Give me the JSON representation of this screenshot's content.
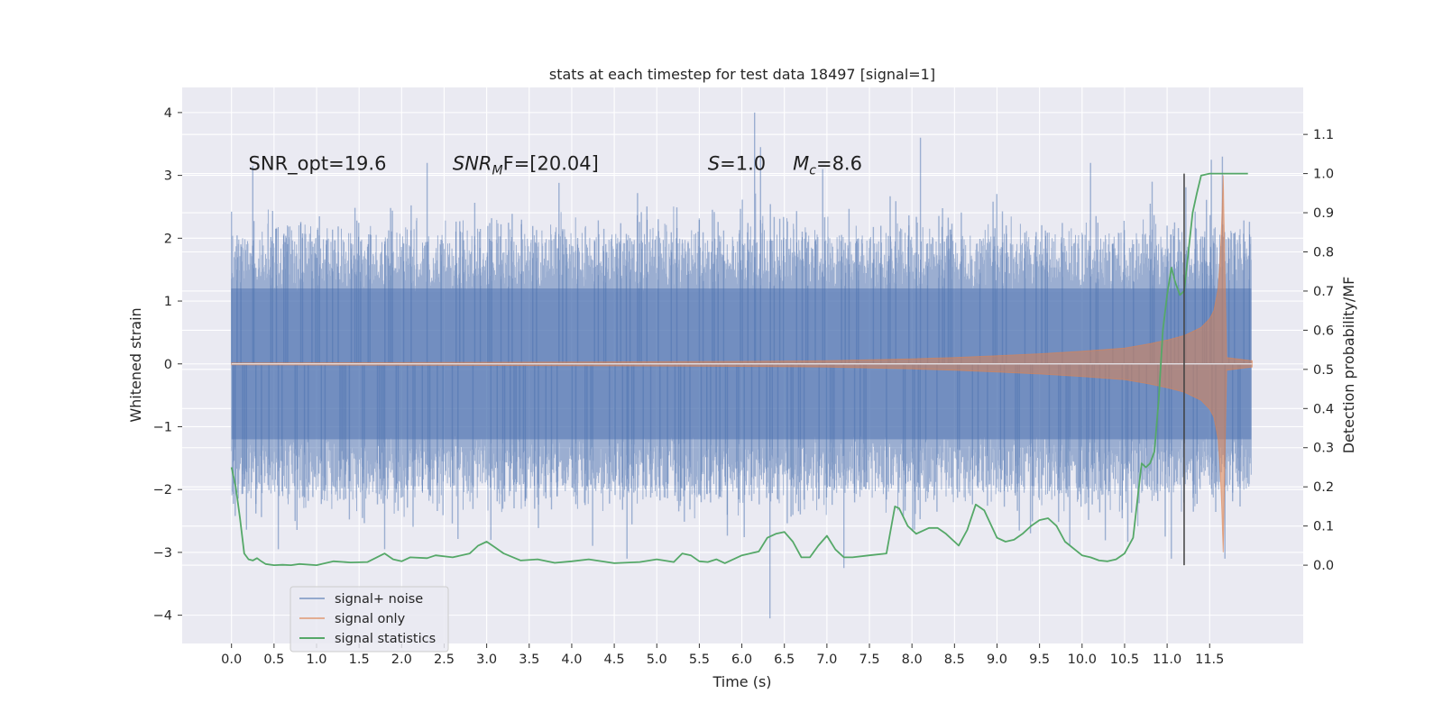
{
  "chart_data": {
    "type": "line",
    "title": "stats at each timestep for test data 18497 [signal=1]",
    "xlabel": "Time (s)",
    "ylabel": "Whitened strain",
    "ylabel_right": "Detection probability/MF",
    "xlim": [
      -0.58,
      12.6
    ],
    "ylim": [
      -4.45,
      4.4
    ],
    "ylim_right": [
      -0.2,
      1.22
    ],
    "xticks": [
      0.0,
      0.5,
      1.0,
      1.5,
      2.0,
      2.5,
      3.0,
      3.5,
      4.0,
      4.5,
      5.0,
      5.5,
      6.0,
      6.5,
      7.0,
      7.5,
      8.0,
      8.5,
      9.0,
      9.5,
      10.0,
      10.5,
      11.0,
      11.5
    ],
    "xtick_labels": [
      "0.0",
      "0.5",
      "1.0",
      "1.5",
      "2.0",
      "2.5",
      "3.0",
      "3.5",
      "4.0",
      "4.5",
      "5.0",
      "5.5",
      "6.0",
      "6.5",
      "7.0",
      "7.5",
      "8.0",
      "8.5",
      "9.0",
      "9.5",
      "10.0",
      "10.5",
      "11.0",
      "11.5"
    ],
    "yticks": [
      -4,
      -3,
      -2,
      -1,
      0,
      1,
      2,
      3,
      4
    ],
    "ytick_labels": [
      "−4",
      "−3",
      "−2",
      "−1",
      "0",
      "1",
      "2",
      "3",
      "4"
    ],
    "yticks_right": [
      0.0,
      0.1,
      0.2,
      0.3,
      0.4,
      0.5,
      0.6,
      0.7,
      0.8,
      0.9,
      1.0,
      1.1
    ],
    "ytick_labels_right": [
      "0.0",
      "0.1",
      "0.2",
      "0.3",
      "0.4",
      "0.5",
      "0.6",
      "0.7",
      "0.8",
      "0.9",
      "1.0",
      "1.1"
    ],
    "grid": true,
    "legend_position": "lower-left",
    "background": "#eaeaf2",
    "series": [
      {
        "name": "signal+ noise",
        "color": "#4c72b0",
        "kind": "noise_band",
        "x_range": [
          0.0,
          11.99
        ],
        "core_amplitude": [
          -1.2,
          1.2
        ],
        "typical_envelope": [
          -1.9,
          1.9
        ],
        "peaks": [
          {
            "x": 0.25,
            "y": 3.15
          },
          {
            "x": 2.3,
            "y": 3.2
          },
          {
            "x": 3.05,
            "y": -2.8
          },
          {
            "x": 4.65,
            "y": -3.1
          },
          {
            "x": 6.15,
            "y": 4.0
          },
          {
            "x": 6.22,
            "y": 3.45
          },
          {
            "x": 6.33,
            "y": -4.05
          },
          {
            "x": 6.95,
            "y": 3.1
          },
          {
            "x": 7.2,
            "y": -3.25
          },
          {
            "x": 8.1,
            "y": 3.6
          },
          {
            "x": 10.1,
            "y": 3.2
          },
          {
            "x": 11.05,
            "y": -3.1
          },
          {
            "x": 11.52,
            "y": 3.25
          },
          {
            "x": 11.65,
            "y": 3.3
          },
          {
            "x": 11.68,
            "y": -3.1
          },
          {
            "x": 0.55,
            "y": -2.95
          },
          {
            "x": 1.8,
            "y": -2.95
          }
        ]
      },
      {
        "name": "signal only",
        "color": "#dd8452",
        "kind": "chirp_envelope",
        "x": [
          0.0,
          2.0,
          4.0,
          6.0,
          7.0,
          8.0,
          8.5,
          9.0,
          9.5,
          10.0,
          10.5,
          10.8,
          11.0,
          11.2,
          11.4,
          11.5,
          11.55,
          11.6,
          11.62,
          11.64,
          11.66,
          11.68,
          11.7,
          12.0
        ],
        "amplitude": [
          0.015,
          0.02,
          0.03,
          0.04,
          0.05,
          0.08,
          0.1,
          0.13,
          0.16,
          0.2,
          0.25,
          0.32,
          0.38,
          0.45,
          0.58,
          0.72,
          0.85,
          1.2,
          1.6,
          2.2,
          3.0,
          1.5,
          0.1,
          0.05
        ]
      },
      {
        "name": "signal statistics",
        "color": "#55a868",
        "kind": "line",
        "axis": "right",
        "x": [
          0.0,
          0.05,
          0.1,
          0.15,
          0.2,
          0.25,
          0.3,
          0.35,
          0.4,
          0.5,
          0.6,
          0.7,
          0.8,
          1.0,
          1.2,
          1.4,
          1.6,
          1.8,
          1.9,
          2.0,
          2.1,
          2.3,
          2.4,
          2.6,
          2.8,
          2.9,
          3.0,
          3.1,
          3.2,
          3.4,
          3.6,
          3.8,
          4.0,
          4.2,
          4.5,
          4.8,
          5.0,
          5.2,
          5.3,
          5.4,
          5.5,
          5.6,
          5.7,
          5.8,
          6.0,
          6.2,
          6.3,
          6.4,
          6.5,
          6.6,
          6.7,
          6.8,
          6.9,
          7.0,
          7.1,
          7.2,
          7.3,
          7.5,
          7.7,
          7.8,
          7.85,
          7.95,
          8.05,
          8.2,
          8.3,
          8.4,
          8.5,
          8.55,
          8.65,
          8.75,
          8.85,
          9.0,
          9.1,
          9.2,
          9.3,
          9.4,
          9.5,
          9.6,
          9.7,
          9.8,
          10.0,
          10.1,
          10.2,
          10.3,
          10.4,
          10.5,
          10.6,
          10.7,
          10.75,
          10.8,
          10.85,
          10.9,
          10.95,
          11.0,
          11.05,
          11.1,
          11.15,
          11.2,
          11.25,
          11.3,
          11.35,
          11.4,
          11.5,
          11.6,
          11.7,
          11.8,
          11.9,
          11.95
        ],
        "values": [
          0.25,
          0.2,
          0.12,
          0.03,
          0.015,
          0.012,
          0.018,
          0.01,
          0.003,
          0.0,
          0.001,
          0.0,
          0.003,
          0.0,
          0.01,
          0.007,
          0.008,
          0.03,
          0.015,
          0.01,
          0.02,
          0.018,
          0.025,
          0.02,
          0.03,
          0.05,
          0.06,
          0.045,
          0.03,
          0.012,
          0.015,
          0.006,
          0.01,
          0.015,
          0.005,
          0.008,
          0.015,
          0.008,
          0.03,
          0.025,
          0.01,
          0.008,
          0.015,
          0.005,
          0.025,
          0.035,
          0.07,
          0.08,
          0.085,
          0.06,
          0.02,
          0.02,
          0.05,
          0.075,
          0.04,
          0.02,
          0.02,
          0.025,
          0.03,
          0.15,
          0.145,
          0.1,
          0.08,
          0.095,
          0.095,
          0.08,
          0.06,
          0.05,
          0.09,
          0.155,
          0.14,
          0.07,
          0.06,
          0.065,
          0.08,
          0.1,
          0.115,
          0.12,
          0.1,
          0.06,
          0.025,
          0.02,
          0.012,
          0.01,
          0.015,
          0.03,
          0.07,
          0.26,
          0.25,
          0.26,
          0.29,
          0.42,
          0.6,
          0.69,
          0.76,
          0.72,
          0.69,
          0.7,
          0.8,
          0.9,
          0.95,
          0.995,
          1.0,
          1.0,
          1.0,
          1.0,
          1.0,
          1.0
        ]
      }
    ],
    "vline": {
      "x": 11.2,
      "y_right": [
        0.0,
        1.0
      ],
      "color": "#404040"
    },
    "annotations": [
      {
        "id": "snr_opt",
        "text": "SNR_opt=19.6",
        "x": 0.2,
        "y": 3.2
      },
      {
        "id": "snr_mf",
        "text_main": "SNR",
        "text_sub": "M",
        "text_rest": "F=[20.04]",
        "italic_main": true,
        "x": 2.6,
        "y": 3.2
      },
      {
        "id": "s",
        "text_main": "S",
        "text_rest": "=1.0",
        "italic_main": true,
        "x": 5.6,
        "y": 3.2
      },
      {
        "id": "mc",
        "text_main": "M",
        "text_sub": "c",
        "text_rest": "=8.6",
        "italic_main": true,
        "x": 6.6,
        "y": 3.2
      }
    ]
  }
}
